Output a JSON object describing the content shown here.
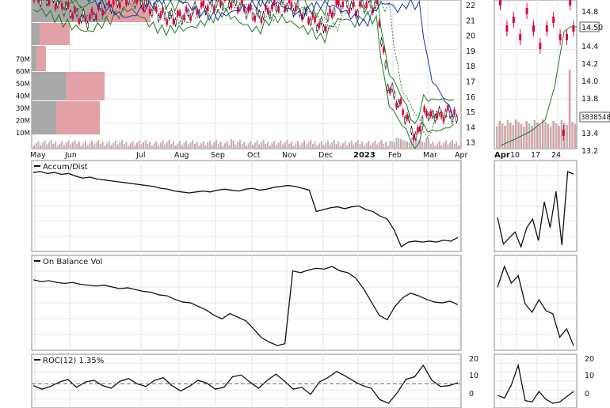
{
  "chart_data": [
    {
      "type": "candlestick",
      "panel": "price",
      "x_labels": [
        "May",
        "Jun",
        "Jul",
        "Aug",
        "Sep",
        "Oct",
        "Nov",
        "Dec",
        "2023",
        "Feb",
        "Mar",
        "Apr"
      ],
      "y_ticks": [
        "22",
        "21",
        "20",
        "19",
        "18",
        "17",
        "16",
        "15",
        "14",
        "13"
      ],
      "volume_ticks": [
        "70M",
        "60M",
        "50M",
        "40M",
        "30M",
        "20M",
        "10M"
      ],
      "overlays": [
        "upper band",
        "lower band",
        "moving average (dotted)",
        "moving average (blue)"
      ],
      "volume_by_price_bars": [
        {
          "price_level": "22",
          "total": 150,
          "up_fraction": 0.63
        },
        {
          "price_level": "20",
          "total": 48,
          "up_fraction": 0.21
        },
        {
          "price_level": "17",
          "total": 18,
          "up_fraction": 0.33
        },
        {
          "price_level": "15",
          "total": 92,
          "up_fraction": 0.48
        },
        {
          "price_level": "13",
          "total": 86,
          "up_fraction": 0.36
        }
      ],
      "price_path": [
        [
          0,
          22.4
        ],
        [
          5,
          22.5
        ],
        [
          10,
          22.2
        ],
        [
          15,
          21.8
        ],
        [
          20,
          21.3
        ],
        [
          25,
          21.0
        ],
        [
          30,
          21.6
        ],
        [
          35,
          22.0
        ],
        [
          40,
          22.3
        ],
        [
          45,
          22.5
        ],
        [
          50,
          22.2
        ],
        [
          55,
          21.7
        ],
        [
          60,
          21.3
        ],
        [
          65,
          21.1
        ],
        [
          70,
          21.3
        ],
        [
          75,
          21.6
        ],
        [
          80,
          21.9
        ],
        [
          85,
          22.1
        ],
        [
          90,
          22.3
        ],
        [
          95,
          22.0
        ],
        [
          100,
          21.6
        ],
        [
          105,
          21.2
        ],
        [
          110,
          21.7
        ],
        [
          115,
          22.1
        ],
        [
          120,
          21.9
        ],
        [
          125,
          21.5
        ],
        [
          130,
          21.0
        ],
        [
          135,
          20.5
        ],
        [
          140,
          21.8
        ],
        [
          145,
          22.2
        ],
        [
          150,
          21.6
        ],
        [
          155,
          22.1
        ],
        [
          160,
          21.9
        ],
        [
          165,
          16.8
        ],
        [
          168,
          16.0
        ],
        [
          171,
          15.3
        ],
        [
          174,
          14.5
        ],
        [
          176,
          14.0
        ],
        [
          178,
          13.1
        ],
        [
          180,
          14.2
        ],
        [
          182,
          14.8
        ],
        [
          184,
          15.0
        ],
        [
          186,
          14.5
        ],
        [
          188,
          15.0
        ],
        [
          190,
          14.6
        ],
        [
          192,
          15.0
        ],
        [
          194,
          14.8
        ],
        [
          196,
          14.9
        ],
        [
          198,
          13.5
        ]
      ],
      "price_color_up": "#111111",
      "price_color_down": "#e0003c"
    },
    {
      "type": "candlestick",
      "panel": "price-zoom",
      "x_labels": [
        "Apr",
        "10",
        "17",
        "24"
      ],
      "y_ticks": [
        "14.8",
        "14.6",
        "14.4",
        "14.2",
        "14.0",
        "13.8",
        "13.6",
        "13.4",
        "13.2"
      ],
      "last_price_label": "14.50",
      "volume_label": "3838548",
      "price_path": [
        [
          0,
          14.9
        ],
        [
          2,
          14.6
        ],
        [
          4,
          14.7
        ],
        [
          6,
          14.5
        ],
        [
          8,
          14.8
        ],
        [
          10,
          14.6
        ],
        [
          12,
          14.4
        ],
        [
          14,
          14.6
        ],
        [
          16,
          14.7
        ],
        [
          18,
          14.5
        ],
        [
          19,
          13.4
        ],
        [
          20,
          14.5
        ],
        [
          21,
          14.9
        ],
        [
          22,
          14.6
        ]
      ]
    },
    {
      "type": "line",
      "panel": "indicator",
      "title": "Accum/Dist",
      "values": [
        0.92,
        0.93,
        0.91,
        0.92,
        0.9,
        0.91,
        0.88,
        0.86,
        0.87,
        0.85,
        0.84,
        0.83,
        0.82,
        0.81,
        0.8,
        0.79,
        0.78,
        0.77,
        0.75,
        0.74,
        0.72,
        0.71,
        0.7,
        0.71,
        0.72,
        0.71,
        0.73,
        0.74,
        0.73,
        0.72,
        0.74,
        0.75,
        0.73,
        0.74,
        0.76,
        0.77,
        0.78,
        0.77,
        0.75,
        0.73,
        0.5,
        0.52,
        0.54,
        0.55,
        0.53,
        0.55,
        0.56,
        0.52,
        0.5,
        0.45,
        0.42,
        0.3,
        0.12,
        0.17,
        0.18,
        0.17,
        0.18,
        0.17,
        0.19,
        0.18,
        0.22
      ],
      "zoom_values": [
        0.42,
        0.11,
        0.18,
        0.25,
        0.08,
        0.3,
        0.4,
        0.15,
        0.6,
        0.3,
        0.72,
        0.1,
        0.95,
        0.92
      ]
    },
    {
      "type": "line",
      "panel": "indicator",
      "title": "On Balance Vol",
      "values": [
        0.8,
        0.78,
        0.79,
        0.77,
        0.76,
        0.77,
        0.75,
        0.74,
        0.73,
        0.74,
        0.72,
        0.7,
        0.71,
        0.69,
        0.67,
        0.66,
        0.63,
        0.62,
        0.58,
        0.55,
        0.54,
        0.5,
        0.46,
        0.4,
        0.36,
        0.42,
        0.38,
        0.34,
        0.25,
        0.15,
        0.1,
        0.06,
        0.08,
        0.9,
        0.88,
        0.91,
        0.93,
        0.92,
        0.95,
        0.9,
        0.88,
        0.82,
        0.7,
        0.55,
        0.4,
        0.35,
        0.5,
        0.6,
        0.65,
        0.62,
        0.58,
        0.55,
        0.54,
        0.56,
        0.52
      ],
      "zoom_values": [
        0.7,
        0.95,
        0.75,
        0.84,
        0.5,
        0.4,
        0.55,
        0.42,
        0.38,
        0.1,
        0.2,
        0.0
      ]
    },
    {
      "type": "line",
      "panel": "indicator",
      "title": "ROC(12) 1.35%",
      "y_ticks": [
        "20",
        "10",
        "0"
      ],
      "values": [
        -2,
        -6,
        -3,
        2,
        5,
        -4,
        2,
        4,
        -2,
        -5,
        3,
        6,
        0,
        -3,
        4,
        7,
        -2,
        -8,
        -3,
        4,
        1,
        -6,
        -4,
        8,
        10,
        2,
        -5,
        4,
        11,
        3,
        -6,
        -4,
        -12,
        2,
        7,
        14,
        9,
        3,
        -2,
        -5,
        -18,
        -22,
        -10,
        5,
        8,
        21,
        4,
        -3,
        -2,
        1.35
      ],
      "zoom_values": [
        -3,
        -5,
        5,
        20,
        -7,
        -8,
        0,
        -6,
        -9,
        -8,
        -4,
        0
      ]
    }
  ]
}
